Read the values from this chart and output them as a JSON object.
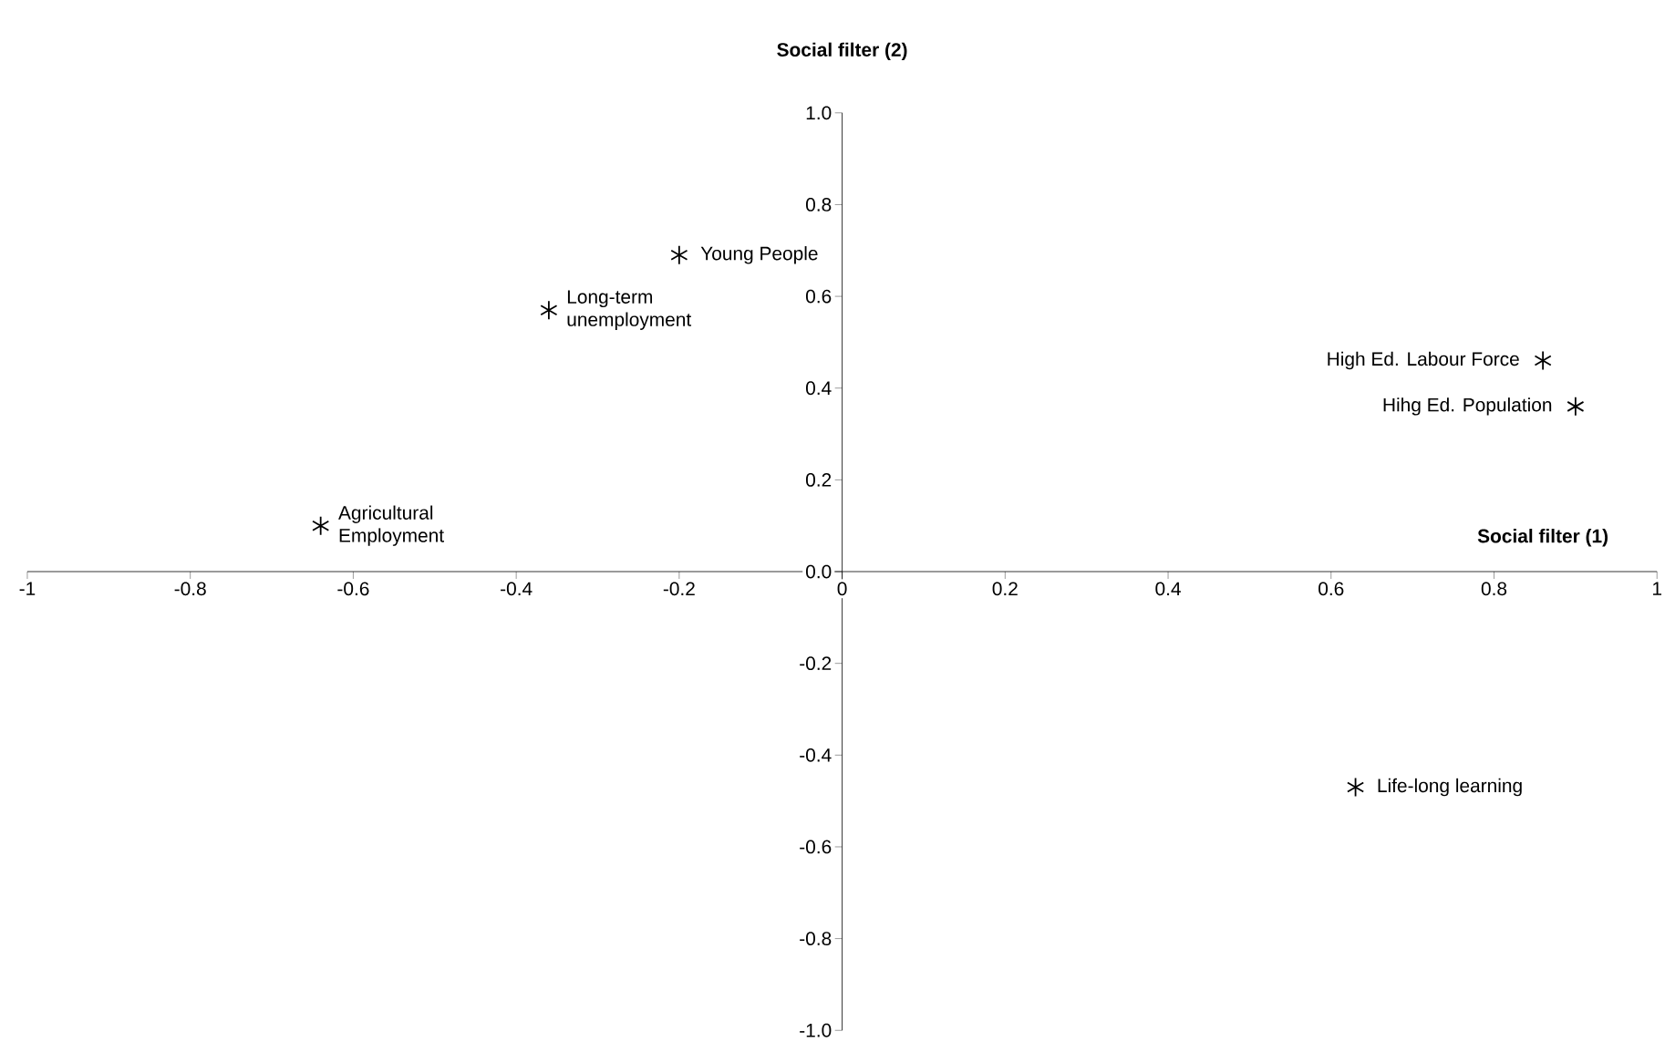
{
  "chart_data": {
    "type": "scatter",
    "xlabel": "Social filter (1)",
    "ylabel": "Social filter (2)",
    "x": [
      -0.2,
      -0.36,
      -0.64,
      0.86,
      0.9,
      0.63
    ],
    "values": [
      0.69,
      0.57,
      0.1,
      0.46,
      0.36,
      -0.47
    ],
    "color": "#000000",
    "marker": "cross",
    "xlim": [
      -1,
      1
    ],
    "ylim": [
      -1,
      1
    ],
    "xticks": [
      -1,
      -0.8,
      -0.6,
      -0.4,
      -0.2,
      0,
      0.2,
      0.4,
      0.6,
      0.8,
      1
    ],
    "yticks": [
      {
        "value": -1,
        "label": "-1.0"
      },
      {
        "value": -0.8,
        "label": "-0.8"
      },
      {
        "value": -0.6,
        "label": "-0.6"
      },
      {
        "value": -0.4,
        "label": "-0.4"
      },
      {
        "value": -0.2,
        "label": "-0.2"
      },
      {
        "value": 0,
        "label": "0.0"
      },
      {
        "value": 0.2,
        "label": "0.2"
      },
      {
        "value": 0.4,
        "label": "0.4"
      },
      {
        "value": 0.6,
        "label": "0.6"
      },
      {
        "value": 0.8,
        "label": "0.8"
      },
      {
        "value": 1,
        "label": "1.0"
      }
    ],
    "annotations": [
      {
        "text": "Young People",
        "x": -0.2,
        "y": 0.69
      },
      {
        "text": "Long-term unemployment",
        "x": -0.36,
        "y": 0.57
      },
      {
        "text": "Agricultural Employment",
        "x": -0.64,
        "y": 0.1
      },
      {
        "text": "High Ed. Labour Force",
        "x": 0.86,
        "y": 0.46
      },
      {
        "text": "Hihg Ed. Population",
        "x": 0.9,
        "y": 0.36
      },
      {
        "text": "Life-long learning",
        "x": 0.63,
        "y": -0.47
      }
    ]
  }
}
